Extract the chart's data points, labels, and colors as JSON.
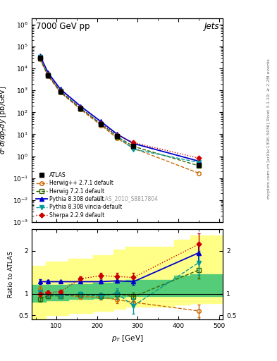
{
  "title": "7000 GeV pp",
  "title_right": "Jets",
  "watermark": "ATLAS_2010_S8817804",
  "ylabel_main": "$d^2\\sigma/dp_{T}dy$ [pb/GeV]",
  "ylabel_ratio": "Ratio to ATLAS",
  "xlabel": "$p_{T}$ [GeV]",
  "right_label_top": "Rivet 3.1.10; ≥ 2.2M events",
  "right_label_bot": "mcplots.cern.ch [arXiv:1306.3436]",
  "pt_atlas": [
    60,
    80,
    110,
    160,
    210,
    250,
    290,
    450
  ],
  "xs_atlas": [
    30000,
    5000,
    900,
    150,
    30,
    8,
    3,
    0.4
  ],
  "xs_atlas_err_lo": [
    3000,
    500,
    90,
    15,
    3,
    0.8,
    0.3,
    0.06
  ],
  "xs_atlas_err_hi": [
    3000,
    500,
    90,
    15,
    3,
    0.8,
    0.3,
    0.06
  ],
  "pt_herwig1": [
    60,
    80,
    110,
    160,
    210,
    250,
    290,
    450
  ],
  "xs_herwig1": [
    26000,
    4500,
    820,
    135,
    26,
    6.5,
    2.3,
    0.17
  ],
  "pt_herwig2": [
    60,
    80,
    110,
    160,
    210,
    250,
    290,
    450
  ],
  "xs_herwig2": [
    29000,
    4900,
    870,
    148,
    29,
    7.8,
    2.8,
    0.37
  ],
  "pt_pythia1": [
    60,
    80,
    110,
    160,
    210,
    250,
    290,
    450
  ],
  "xs_pythia1": [
    38000,
    6400,
    1150,
    190,
    38,
    10,
    3.8,
    0.6
  ],
  "pt_pythia2": [
    60,
    80,
    110,
    160,
    210,
    250,
    290,
    450
  ],
  "xs_pythia2": [
    32000,
    5200,
    950,
    155,
    30,
    8.0,
    2.1,
    0.52
  ],
  "pt_sherpa": [
    60,
    80,
    110,
    160,
    210,
    250,
    290,
    450
  ],
  "xs_sherpa": [
    30000,
    5100,
    920,
    156,
    31,
    9.0,
    4.2,
    0.82
  ],
  "ratio_pt": [
    60,
    80,
    110,
    160,
    210,
    250,
    290,
    450
  ],
  "ratio_herwig1": [
    1.1,
    1.0,
    0.97,
    0.93,
    0.92,
    0.86,
    0.8,
    0.6
  ],
  "ratio_herwig2": [
    0.88,
    0.95,
    0.95,
    0.97,
    0.95,
    1.0,
    0.93,
    1.55
  ],
  "ratio_pythia1": [
    1.28,
    1.28,
    1.28,
    1.28,
    1.28,
    1.3,
    1.28,
    1.95
  ],
  "ratio_pythia2": [
    1.03,
    0.98,
    0.95,
    0.99,
    0.95,
    1.0,
    0.72,
    1.72
  ],
  "ratio_sherpa": [
    1.0,
    1.02,
    1.05,
    1.35,
    1.42,
    1.4,
    1.38,
    2.15
  ],
  "ratio_herwig1_err": [
    0.08,
    0.06,
    0.05,
    0.05,
    0.06,
    0.08,
    0.1,
    0.15
  ],
  "ratio_herwig2_err": [
    0.06,
    0.05,
    0.05,
    0.05,
    0.06,
    0.08,
    0.1,
    0.2
  ],
  "ratio_pythia1_err": [
    0.05,
    0.04,
    0.03,
    0.03,
    0.04,
    0.05,
    0.07,
    0.18
  ],
  "ratio_pythia2_err": [
    0.06,
    0.05,
    0.05,
    0.06,
    0.07,
    0.12,
    0.18,
    0.28
  ],
  "ratio_sherpa_err": [
    0.06,
    0.05,
    0.04,
    0.06,
    0.07,
    0.09,
    0.11,
    0.25
  ],
  "band_yellow_edges": [
    40,
    75,
    130,
    190,
    240,
    270,
    390,
    430,
    510
  ],
  "band_yellow_lo": [
    0.42,
    0.5,
    0.55,
    0.6,
    0.65,
    0.7,
    0.75,
    0.78
  ],
  "band_yellow_hi": [
    1.65,
    1.75,
    1.82,
    1.9,
    2.02,
    2.1,
    2.25,
    2.35
  ],
  "band_green_edges": [
    40,
    75,
    130,
    190,
    240,
    270,
    390,
    430,
    510
  ],
  "band_green_lo": [
    0.82,
    0.85,
    0.88,
    0.9,
    0.92,
    0.94,
    0.94,
    0.95
  ],
  "band_green_hi": [
    1.2,
    1.2,
    1.22,
    1.25,
    1.28,
    1.32,
    1.42,
    1.45
  ],
  "color_atlas": "#000000",
  "color_herwig1": "#cc6600",
  "color_herwig2": "#336600",
  "color_pythia1": "#0000cc",
  "color_pythia2": "#009999",
  "color_sherpa": "#cc0000",
  "ylim_main": [
    0.001,
    2000000.0
  ],
  "ylim_ratio": [
    0.4,
    2.5
  ],
  "xlim": [
    40,
    510
  ]
}
